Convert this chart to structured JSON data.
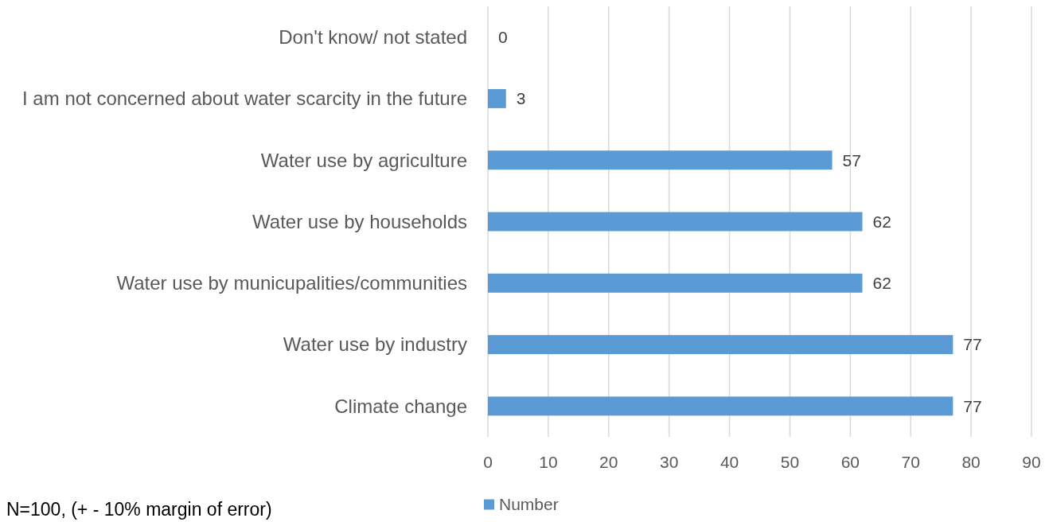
{
  "chart_data": {
    "type": "bar",
    "orientation": "horizontal",
    "categories": [
      "Don't know/ not stated",
      "I am not concerned about water scarcity in the future",
      "Water use by agriculture",
      "Water use by households",
      "Water use by municupalities/communities",
      "Water use by industry",
      "Climate change"
    ],
    "series": [
      {
        "name": "Number",
        "color": "#5b9bd5",
        "values": [
          0,
          3,
          57,
          62,
          62,
          77,
          77
        ]
      }
    ],
    "xlim": [
      0,
      90
    ],
    "xticks": [
      0,
      10,
      20,
      30,
      40,
      50,
      60,
      70,
      80,
      90
    ],
    "grid": "x",
    "data_labels": true,
    "legend": "bottom",
    "annotations": [
      "N=100, (+ - 10% margin of error)"
    ]
  }
}
